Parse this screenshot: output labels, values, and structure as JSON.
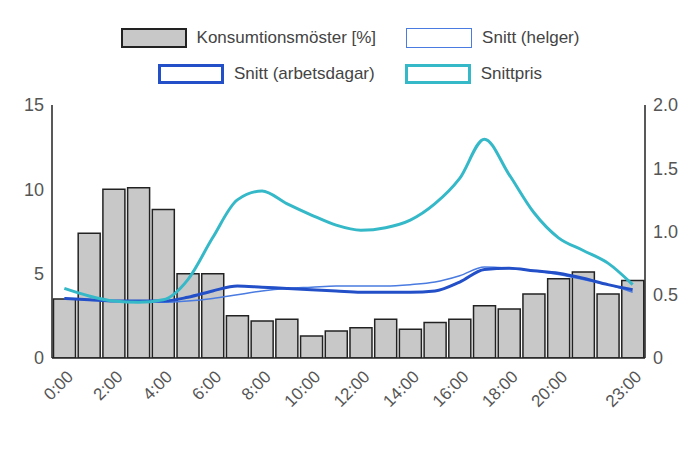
{
  "chart_data": {
    "type": "bar",
    "categories": [
      "0:00",
      null,
      "2:00",
      null,
      "4:00",
      null,
      "6:00",
      null,
      "8:00",
      null,
      "10:00",
      null,
      "12:00",
      null,
      "14:00",
      null,
      "16:00",
      null,
      "18:00",
      null,
      "20:00",
      null,
      null,
      "23:00"
    ],
    "series": [
      {
        "name": "Konsumtionsmöster [%]",
        "type": "bar",
        "color": "#c8c8c8",
        "values": [
          3.5,
          7.4,
          10.0,
          10.1,
          8.8,
          5.0,
          5.0,
          2.5,
          2.2,
          2.3,
          1.3,
          1.6,
          1.8,
          2.3,
          1.7,
          2.1,
          2.3,
          3.1,
          2.9,
          3.8,
          4.7,
          5.1,
          3.8,
          4.6
        ]
      },
      {
        "name": "Snitt (helger)",
        "type": "line",
        "axis": "y2",
        "color": "#4a7be0",
        "line_style": "thin",
        "values": [
          0.47,
          0.46,
          0.45,
          0.45,
          0.44,
          0.45,
          0.47,
          0.5,
          0.53,
          0.55,
          0.56,
          0.57,
          0.57,
          0.57,
          0.58,
          0.6,
          0.65,
          0.72,
          0.71,
          0.69,
          0.66,
          0.62,
          0.58,
          0.52
        ]
      },
      {
        "name": "Snitt (arbetsdagar)",
        "type": "line",
        "axis": "y2",
        "color": "#2350c8",
        "line_style": "thick",
        "values": [
          0.47,
          0.46,
          0.45,
          0.45,
          0.45,
          0.48,
          0.53,
          0.57,
          0.56,
          0.55,
          0.54,
          0.53,
          0.52,
          0.52,
          0.52,
          0.53,
          0.6,
          0.7,
          0.71,
          0.69,
          0.67,
          0.63,
          0.58,
          0.54
        ]
      },
      {
        "name": "Snittpris",
        "type": "line",
        "axis": "y2",
        "color": "#35b8c8",
        "line_style": "thick",
        "values": [
          0.55,
          0.49,
          0.45,
          0.44,
          0.46,
          0.62,
          0.95,
          1.25,
          1.32,
          1.22,
          1.13,
          1.05,
          1.01,
          1.03,
          1.09,
          1.22,
          1.42,
          1.73,
          1.45,
          1.15,
          0.95,
          0.85,
          0.75,
          0.58
        ]
      }
    ],
    "ylim": [
      0,
      15
    ],
    "yticks": [
      0,
      5,
      10,
      15
    ],
    "y2lim": [
      0,
      2
    ],
    "y2ticks": [
      0,
      0.5,
      {
        "value": 1,
        "label": "1.0"
      },
      1.5,
      {
        "value": 2,
        "label": "2.0"
      }
    ],
    "grid": false,
    "legend": "top"
  }
}
